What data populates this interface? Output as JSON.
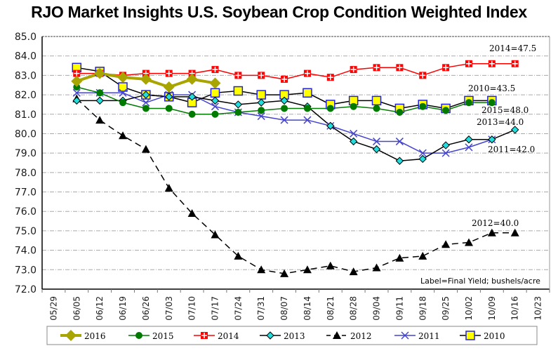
{
  "chart_data": {
    "type": "line",
    "title": "RJO Market Insights U.S. Soybean Crop Condition Weighted Index",
    "xlabel": "",
    "ylabel": "",
    "ylim": [
      72.0,
      85.0
    ],
    "ytick_step": 1.0,
    "ytick_labels": [
      "72.0",
      "73.0",
      "74.0",
      "75.0",
      "76.0",
      "77.0",
      "78.0",
      "79.0",
      "80.0",
      "81.0",
      "82.0",
      "83.0",
      "84.0",
      "85.0"
    ],
    "grid": true,
    "legend_position": "bottom",
    "categories": [
      "05/29",
      "06/05",
      "06/12",
      "06/19",
      "06/26",
      "07/03",
      "07/10",
      "07/17",
      "07/24",
      "07/31",
      "08/07",
      "08/14",
      "08/21",
      "08/28",
      "09/04",
      "09/11",
      "09/18",
      "09/25",
      "10/02",
      "10/09",
      "10/16",
      "10/23"
    ],
    "series": [
      {
        "name": "2016",
        "color": "#a8a400",
        "marker": "diamond",
        "dash": false,
        "start_index": 1,
        "values": [
          82.7,
          83.1,
          82.9,
          82.8,
          82.4,
          82.8,
          82.6
        ]
      },
      {
        "name": "2015",
        "color": "#007a00",
        "marker": "circle",
        "dash": false,
        "start_index": 1,
        "values": [
          82.4,
          82.1,
          81.6,
          81.3,
          81.3,
          81.0,
          81.0,
          81.1,
          81.2,
          81.3,
          81.3,
          81.3,
          81.4,
          81.3,
          81.1,
          81.4,
          81.2,
          81.6,
          81.6
        ]
      },
      {
        "name": "2014",
        "color": "#ff0000",
        "marker": "cross-square",
        "dash": false,
        "start_index": 1,
        "values": [
          83.1,
          83.1,
          83.0,
          83.1,
          83.1,
          83.1,
          83.3,
          83.0,
          83.0,
          82.8,
          83.1,
          82.9,
          83.3,
          83.4,
          83.4,
          83.0,
          83.4,
          83.6,
          83.6,
          83.6
        ]
      },
      {
        "name": "2013",
        "color": "#000000",
        "marker": "diamond-cyan",
        "dash": false,
        "start_index": 1,
        "values": [
          81.7,
          81.7,
          81.7,
          82.0,
          81.9,
          81.9,
          81.7,
          81.5,
          81.6,
          81.7,
          81.4,
          80.4,
          79.6,
          79.2,
          78.6,
          78.7,
          79.4,
          79.7,
          79.7,
          80.2
        ]
      },
      {
        "name": "2012",
        "color": "#000000",
        "marker": "triangle",
        "dash": true,
        "start_index": 1,
        "values": [
          81.8,
          80.7,
          79.9,
          79.2,
          77.2,
          75.9,
          74.8,
          73.7,
          73.0,
          72.8,
          73.0,
          73.2,
          72.9,
          73.1,
          73.6,
          73.7,
          74.3,
          74.4,
          74.9,
          74.9
        ]
      },
      {
        "name": "2011",
        "color": "#4444cc",
        "marker": "x",
        "dash": false,
        "start_index": 1,
        "values": [
          82.1,
          82.1,
          82.1,
          81.6,
          82.0,
          82.0,
          81.4,
          81.1,
          80.9,
          80.7,
          80.7,
          80.4,
          80.0,
          79.6,
          79.6,
          79.0,
          79.0,
          79.3,
          79.7
        ]
      },
      {
        "name": "2010",
        "color": "#000000",
        "marker": "square-yellow",
        "dash": false,
        "start_index": 1,
        "values": [
          83.4,
          83.2,
          82.4,
          82.0,
          81.9,
          81.6,
          82.1,
          82.2,
          82.0,
          82.0,
          82.1,
          81.5,
          81.7,
          81.7,
          81.3,
          81.5,
          81.3,
          81.7,
          81.7
        ]
      }
    ],
    "annotations": [
      {
        "text": "2014=47.5",
        "series": "2014"
      },
      {
        "text": "2010=43.5",
        "series": "2010"
      },
      {
        "text": "2015=48.0",
        "series": "2015"
      },
      {
        "text": "2013=44.0",
        "series": "2013"
      },
      {
        "text": "2011=42.0",
        "series": "2011"
      },
      {
        "text": "2012=40.0",
        "series": "2012"
      }
    ],
    "note": "Label=Final Yield; bushels/acre"
  }
}
